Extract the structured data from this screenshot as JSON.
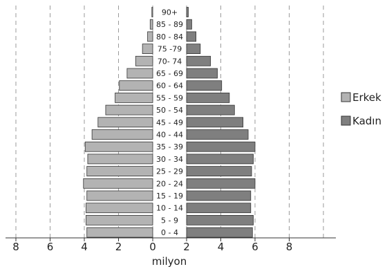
{
  "chart_data": {
    "type": "bar",
    "orientation": "horizontal",
    "subtype": "population-pyramid",
    "xlabel": "milyon",
    "x_ticks": [
      "8",
      "6",
      "4",
      "2",
      "0",
      "2",
      "4",
      "6",
      "8"
    ],
    "xlim": [
      0,
      8
    ],
    "grid": "vertical dashed",
    "legend_position": "right",
    "categories": [
      "90+",
      "85 - 89",
      "80 - 84",
      "75 -79",
      "70- 74",
      "65 - 69",
      "60 - 64",
      "55 - 59",
      "50 - 54",
      "45 - 49",
      "40 - 44",
      "35 - 39",
      "30 - 34",
      "25 - 29",
      "20 - 24",
      "15 - 19",
      "10 - 14",
      "5 - 9",
      "0 - 4"
    ],
    "series": [
      {
        "name": "Erkek",
        "color": "#b3b3b3",
        "values": [
          0.05,
          0.15,
          0.3,
          0.6,
          1.0,
          1.5,
          1.95,
          2.2,
          2.75,
          3.2,
          3.55,
          3.95,
          3.8,
          3.85,
          4.05,
          3.85,
          3.9,
          3.9,
          3.85
        ]
      },
      {
        "name": "Kadın",
        "color": "#7f7f7f",
        "values": [
          0.1,
          0.3,
          0.55,
          0.8,
          1.4,
          1.8,
          2.05,
          2.5,
          2.8,
          3.3,
          3.6,
          4.0,
          3.9,
          3.8,
          4.0,
          3.75,
          3.75,
          3.9,
          3.85
        ]
      }
    ]
  }
}
